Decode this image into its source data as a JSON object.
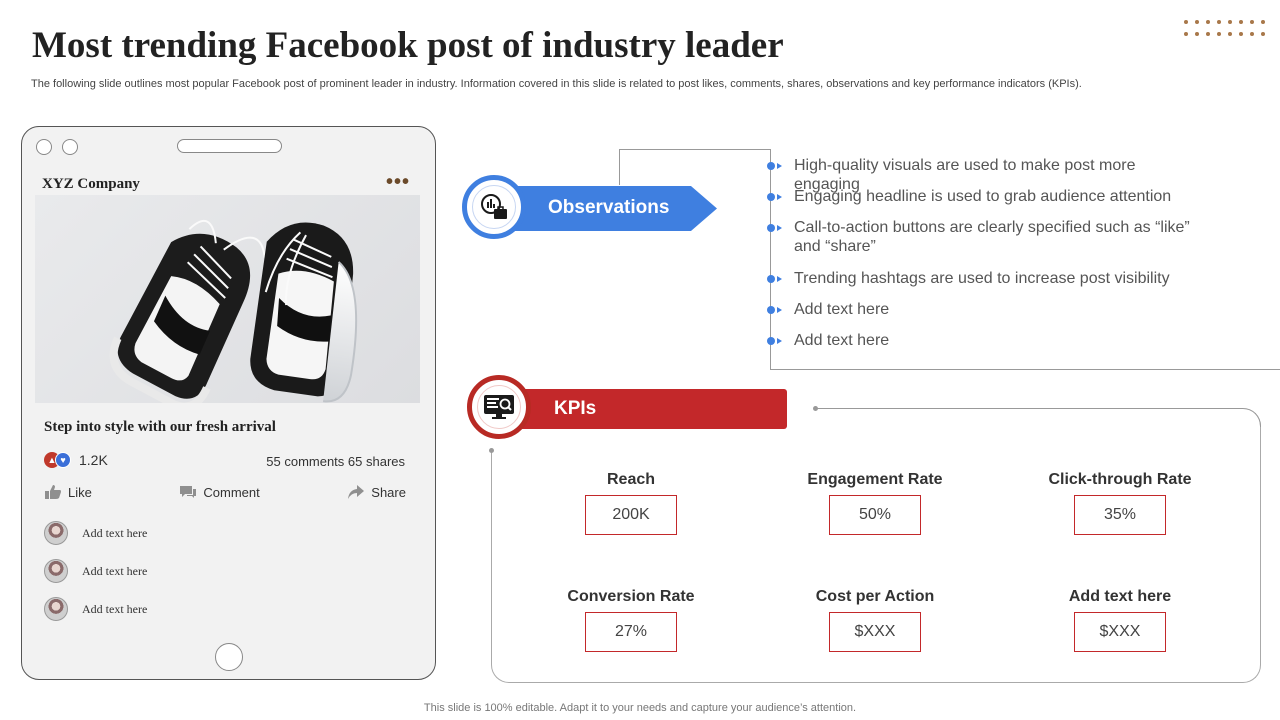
{
  "header": {
    "title": "Most trending Facebook post of industry leader",
    "subtitle": "The following slide outlines most popular Facebook post of prominent leader in industry. Information covered in this slide is related to post likes, comments, shares, observations and key performance indicators (KPIs)."
  },
  "post": {
    "company": "XYZ  Company",
    "more_icon": "more-dots-icon",
    "caption": "Step into  style with  our fresh arrival",
    "reaction_count": "1.2K",
    "stats": "55 comments 65 shares",
    "actions": {
      "like": "Like",
      "comment": "Comment",
      "share": "Share"
    },
    "comments": [
      "Add text here",
      "Add text here",
      "Add text here"
    ]
  },
  "observations": {
    "title": "Observations",
    "icon": "briefcase-chart-icon",
    "items": [
      "High-quality visuals are used to make post more engaging",
      "Engaging headline is used to grab audience attention",
      "Call-to-action buttons are clearly specified such as “like” and “share”",
      "Trending hashtags are used to increase post visibility",
      "Add text here",
      "Add text here"
    ]
  },
  "kpis": {
    "title": "KPIs",
    "icon": "monitor-search-icon",
    "items": [
      {
        "label": "Reach",
        "value": "200K"
      },
      {
        "label": "Engagement Rate",
        "value": "50%"
      },
      {
        "label": "Click-through Rate",
        "value": "35%"
      },
      {
        "label": "Conversion Rate",
        "value": "27%"
      },
      {
        "label": "Cost per Action",
        "value": "$XXX"
      },
      {
        "label": "Add text here",
        "value": "$XXX"
      }
    ]
  },
  "footer": {
    "text": "This slide is 100% editable. Adapt it to your needs and capture your audience’s attention."
  },
  "colors": {
    "accent_blue": "#3f7fe0",
    "accent_red": "#c3282a",
    "dots": "#a8784a"
  }
}
